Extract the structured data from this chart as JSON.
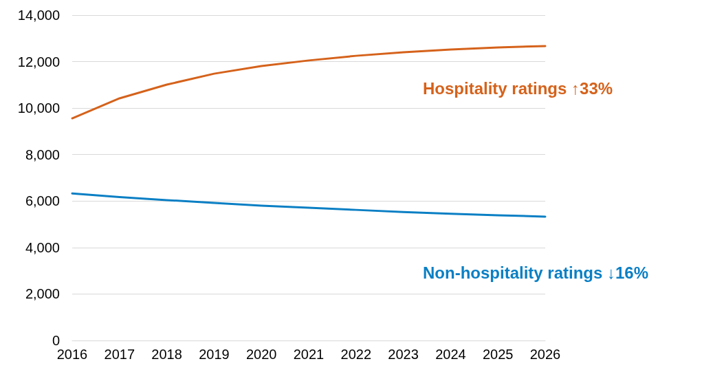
{
  "chart_data": {
    "type": "line",
    "categories": [
      "2016",
      "2017",
      "2018",
      "2019",
      "2020",
      "2021",
      "2022",
      "2023",
      "2024",
      "2025",
      "2026"
    ],
    "series": [
      {
        "name": "Hospitality ratings ↑33%",
        "color": "#d5621b",
        "values": [
          9560,
          10420,
          11010,
          11480,
          11810,
          12050,
          12250,
          12400,
          12520,
          12610,
          12670
        ]
      },
      {
        "name": "Non-hospitality ratings ↓16%",
        "color": "#0a7fc4",
        "values": [
          6330,
          6170,
          6040,
          5920,
          5800,
          5710,
          5620,
          5530,
          5450,
          5390,
          5330
        ]
      }
    ],
    "ylim": [
      0,
      14000
    ],
    "yticks": [
      0,
      {
        "value": 2000,
        "label": "2,000"
      },
      {
        "value": 4000,
        "label": "4,000"
      },
      {
        "value": 6000,
        "label": "6,000"
      },
      {
        "value": 8000,
        "label": "8,000"
      },
      {
        "value": 10000,
        "label": "10,000"
      },
      {
        "value": 12000,
        "label": "12,000"
      },
      {
        "value": 14000,
        "label": "14,000"
      }
    ],
    "grid": "y",
    "legend": false,
    "marker": "none",
    "line_style": "solid"
  }
}
